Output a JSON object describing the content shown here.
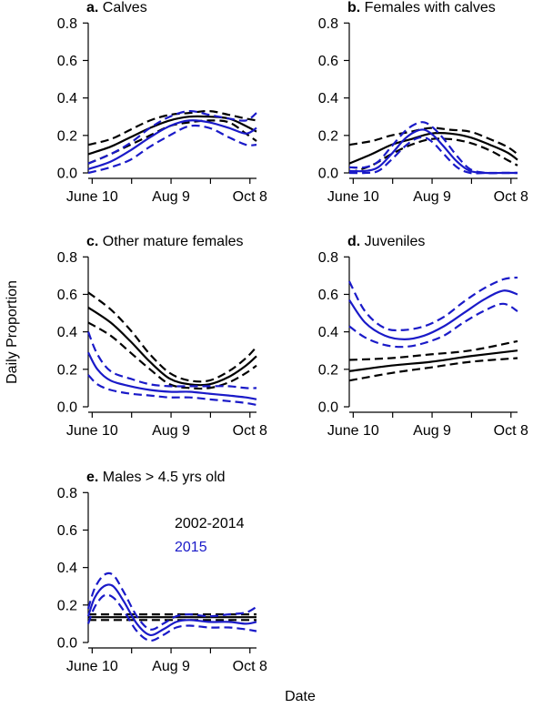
{
  "figure": {
    "ylabel": "Daily Proportion",
    "xlabel": "Date"
  },
  "legend": {
    "entries": [
      {
        "label": "2002-2014",
        "color": "#000000"
      },
      {
        "label": "2015",
        "color": "#1a1ac8"
      }
    ]
  },
  "chart_data": [
    {
      "type": "line",
      "panel_letter": "a.",
      "title": "Calves",
      "x_unit": "day of year",
      "xlim": [
        158,
        286
      ],
      "ylim": [
        0,
        0.85
      ],
      "x_ticks": [
        {
          "x": 161,
          "label": "June 10"
        },
        {
          "x": 221,
          "label": "Aug 9"
        },
        {
          "x": 281,
          "label": "Oct 8"
        }
      ],
      "y_ticks": [
        {
          "y": 0.0,
          "label": "0.0"
        },
        {
          "y": 0.2,
          "label": "0.2"
        },
        {
          "y": 0.4,
          "label": "0.4"
        },
        {
          "y": 0.6,
          "label": "0.6"
        },
        {
          "y": 0.8,
          "label": "0.8"
        }
      ],
      "series": [
        {
          "name": "2002-2014",
          "color": "#000000",
          "x": [
            158,
            175,
            190,
            205,
            220,
            235,
            250,
            265,
            278,
            286
          ],
          "fit": [
            0.1,
            0.14,
            0.19,
            0.24,
            0.28,
            0.3,
            0.3,
            0.29,
            0.25,
            0.22
          ],
          "lower": [
            0.05,
            0.1,
            0.15,
            0.2,
            0.25,
            0.27,
            0.28,
            0.27,
            0.21,
            0.17
          ],
          "upper": [
            0.15,
            0.18,
            0.23,
            0.28,
            0.31,
            0.32,
            0.33,
            0.31,
            0.29,
            0.28
          ]
        },
        {
          "name": "2015",
          "color": "#1a1ac8",
          "x": [
            158,
            175,
            190,
            205,
            220,
            235,
            250,
            265,
            278,
            286
          ],
          "fit": [
            0.02,
            0.06,
            0.12,
            0.19,
            0.25,
            0.28,
            0.27,
            0.24,
            0.21,
            0.24
          ],
          "lower": [
            0.0,
            0.03,
            0.07,
            0.14,
            0.2,
            0.25,
            0.24,
            0.19,
            0.15,
            0.15
          ],
          "upper": [
            0.05,
            0.1,
            0.16,
            0.24,
            0.3,
            0.33,
            0.31,
            0.29,
            0.28,
            0.32
          ]
        }
      ]
    },
    {
      "type": "line",
      "panel_letter": "b.",
      "title": "Females with calves",
      "x_unit": "day of year",
      "xlim": [
        158,
        286
      ],
      "ylim": [
        0,
        0.85
      ],
      "x_ticks": [
        {
          "x": 161,
          "label": "June 10"
        },
        {
          "x": 221,
          "label": "Aug 9"
        },
        {
          "x": 281,
          "label": "Oct 8"
        }
      ],
      "y_ticks": [
        {
          "y": 0.0,
          "label": "0.0"
        },
        {
          "y": 0.2,
          "label": "0.2"
        },
        {
          "y": 0.4,
          "label": "0.4"
        },
        {
          "y": 0.6,
          "label": "0.6"
        },
        {
          "y": 0.8,
          "label": "0.8"
        }
      ],
      "series": [
        {
          "name": "2002-2014",
          "color": "#000000",
          "x": [
            158,
            175,
            190,
            205,
            220,
            235,
            250,
            265,
            278,
            286
          ],
          "fit": [
            0.05,
            0.1,
            0.15,
            0.18,
            0.21,
            0.21,
            0.19,
            0.15,
            0.11,
            0.07
          ],
          "lower": [
            0.0,
            0.04,
            0.1,
            0.15,
            0.18,
            0.18,
            0.16,
            0.12,
            0.07,
            0.04
          ],
          "upper": [
            0.15,
            0.17,
            0.2,
            0.22,
            0.24,
            0.23,
            0.22,
            0.18,
            0.14,
            0.1
          ]
        },
        {
          "name": "2015",
          "color": "#1a1ac8",
          "x": [
            158,
            170,
            180,
            190,
            200,
            208,
            215,
            222,
            230,
            240,
            250,
            262,
            275,
            286
          ],
          "fit": [
            0.01,
            0.01,
            0.03,
            0.1,
            0.18,
            0.22,
            0.23,
            0.2,
            0.14,
            0.06,
            0.01,
            0.0,
            0.0,
            0.0
          ],
          "lower": [
            0.0,
            0.0,
            0.01,
            0.07,
            0.14,
            0.18,
            0.19,
            0.16,
            0.1,
            0.03,
            0.0,
            0.0,
            0.0,
            0.0
          ],
          "upper": [
            0.03,
            0.03,
            0.06,
            0.14,
            0.22,
            0.26,
            0.27,
            0.24,
            0.18,
            0.09,
            0.02,
            0.0,
            0.0,
            0.0
          ]
        }
      ]
    },
    {
      "type": "line",
      "panel_letter": "c.",
      "title": "Other mature females",
      "x_unit": "day of year",
      "xlim": [
        158,
        286
      ],
      "ylim": [
        0,
        0.85
      ],
      "x_ticks": [
        {
          "x": 161,
          "label": "June 10"
        },
        {
          "x": 221,
          "label": "Aug 9"
        },
        {
          "x": 281,
          "label": "Oct 8"
        }
      ],
      "y_ticks": [
        {
          "y": 0.0,
          "label": "0.0"
        },
        {
          "y": 0.2,
          "label": "0.2"
        },
        {
          "y": 0.4,
          "label": "0.4"
        },
        {
          "y": 0.6,
          "label": "0.6"
        },
        {
          "y": 0.8,
          "label": "0.8"
        }
      ],
      "series": [
        {
          "name": "2002-2014",
          "color": "#000000",
          "x": [
            158,
            175,
            190,
            205,
            220,
            235,
            250,
            265,
            278,
            286
          ],
          "fit": [
            0.53,
            0.45,
            0.35,
            0.24,
            0.15,
            0.12,
            0.12,
            0.16,
            0.22,
            0.27
          ],
          "lower": [
            0.45,
            0.38,
            0.29,
            0.2,
            0.12,
            0.1,
            0.1,
            0.13,
            0.18,
            0.22
          ],
          "upper": [
            0.61,
            0.52,
            0.41,
            0.28,
            0.18,
            0.14,
            0.14,
            0.19,
            0.26,
            0.32
          ]
        },
        {
          "name": "2015",
          "color": "#1a1ac8",
          "x": [
            158,
            165,
            175,
            190,
            205,
            220,
            235,
            250,
            265,
            278,
            286
          ],
          "fit": [
            0.29,
            0.2,
            0.14,
            0.11,
            0.09,
            0.08,
            0.08,
            0.07,
            0.06,
            0.05,
            0.04
          ],
          "lower": [
            0.17,
            0.12,
            0.09,
            0.07,
            0.06,
            0.05,
            0.05,
            0.04,
            0.03,
            0.02,
            0.01
          ],
          "upper": [
            0.4,
            0.28,
            0.19,
            0.15,
            0.12,
            0.11,
            0.11,
            0.11,
            0.11,
            0.1,
            0.1
          ]
        }
      ]
    },
    {
      "type": "line",
      "panel_letter": "d.",
      "title": "Juveniles",
      "x_unit": "day of year",
      "xlim": [
        158,
        286
      ],
      "ylim": [
        0,
        0.85
      ],
      "x_ticks": [
        {
          "x": 161,
          "label": "June 10"
        },
        {
          "x": 221,
          "label": "Aug 9"
        },
        {
          "x": 281,
          "label": "Oct 8"
        }
      ],
      "y_ticks": [
        {
          "y": 0.0,
          "label": "0.0"
        },
        {
          "y": 0.2,
          "label": "0.2"
        },
        {
          "y": 0.4,
          "label": "0.4"
        },
        {
          "y": 0.6,
          "label": "0.6"
        },
        {
          "y": 0.8,
          "label": "0.8"
        }
      ],
      "series": [
        {
          "name": "2002-2014",
          "color": "#000000",
          "x": [
            158,
            190,
            220,
            250,
            286
          ],
          "fit": [
            0.19,
            0.22,
            0.24,
            0.27,
            0.3
          ],
          "lower": [
            0.14,
            0.18,
            0.21,
            0.24,
            0.26
          ],
          "upper": [
            0.25,
            0.26,
            0.28,
            0.3,
            0.35
          ]
        },
        {
          "name": "2015",
          "color": "#1a1ac8",
          "x": [
            158,
            170,
            185,
            200,
            215,
            230,
            245,
            260,
            275,
            286
          ],
          "fit": [
            0.57,
            0.45,
            0.38,
            0.36,
            0.38,
            0.43,
            0.5,
            0.57,
            0.62,
            0.6
          ],
          "lower": [
            0.43,
            0.37,
            0.33,
            0.32,
            0.34,
            0.38,
            0.45,
            0.51,
            0.55,
            0.51
          ],
          "upper": [
            0.67,
            0.51,
            0.42,
            0.41,
            0.43,
            0.48,
            0.56,
            0.63,
            0.68,
            0.69
          ]
        }
      ]
    },
    {
      "type": "line",
      "panel_letter": "e.",
      "title": "Males > 4.5 yrs old",
      "x_unit": "day of year",
      "xlim": [
        158,
        286
      ],
      "ylim": [
        0,
        0.85
      ],
      "x_ticks": [
        {
          "x": 161,
          "label": "June 10"
        },
        {
          "x": 221,
          "label": "Aug 9"
        },
        {
          "x": 281,
          "label": "Oct 8"
        }
      ],
      "y_ticks": [
        {
          "y": 0.0,
          "label": "0.0"
        },
        {
          "y": 0.2,
          "label": "0.2"
        },
        {
          "y": 0.4,
          "label": "0.4"
        },
        {
          "y": 0.6,
          "label": "0.6"
        },
        {
          "y": 0.8,
          "label": "0.8"
        }
      ],
      "series": [
        {
          "name": "2002-2014",
          "color": "#000000",
          "x": [
            158,
            286
          ],
          "fit": [
            0.135,
            0.135
          ],
          "lower": [
            0.12,
            0.12
          ],
          "upper": [
            0.15,
            0.15
          ]
        },
        {
          "name": "2015",
          "color": "#1a1ac8",
          "x": [
            158,
            163,
            170,
            177,
            185,
            195,
            205,
            215,
            225,
            235,
            250,
            265,
            278,
            286
          ],
          "fit": [
            0.14,
            0.24,
            0.3,
            0.3,
            0.22,
            0.1,
            0.04,
            0.07,
            0.11,
            0.12,
            0.11,
            0.11,
            0.1,
            0.11
          ],
          "lower": [
            0.1,
            0.19,
            0.25,
            0.24,
            0.17,
            0.06,
            0.01,
            0.04,
            0.08,
            0.09,
            0.08,
            0.08,
            0.07,
            0.06
          ],
          "upper": [
            0.18,
            0.29,
            0.36,
            0.36,
            0.27,
            0.14,
            0.07,
            0.1,
            0.14,
            0.15,
            0.14,
            0.15,
            0.16,
            0.19
          ]
        }
      ]
    }
  ]
}
